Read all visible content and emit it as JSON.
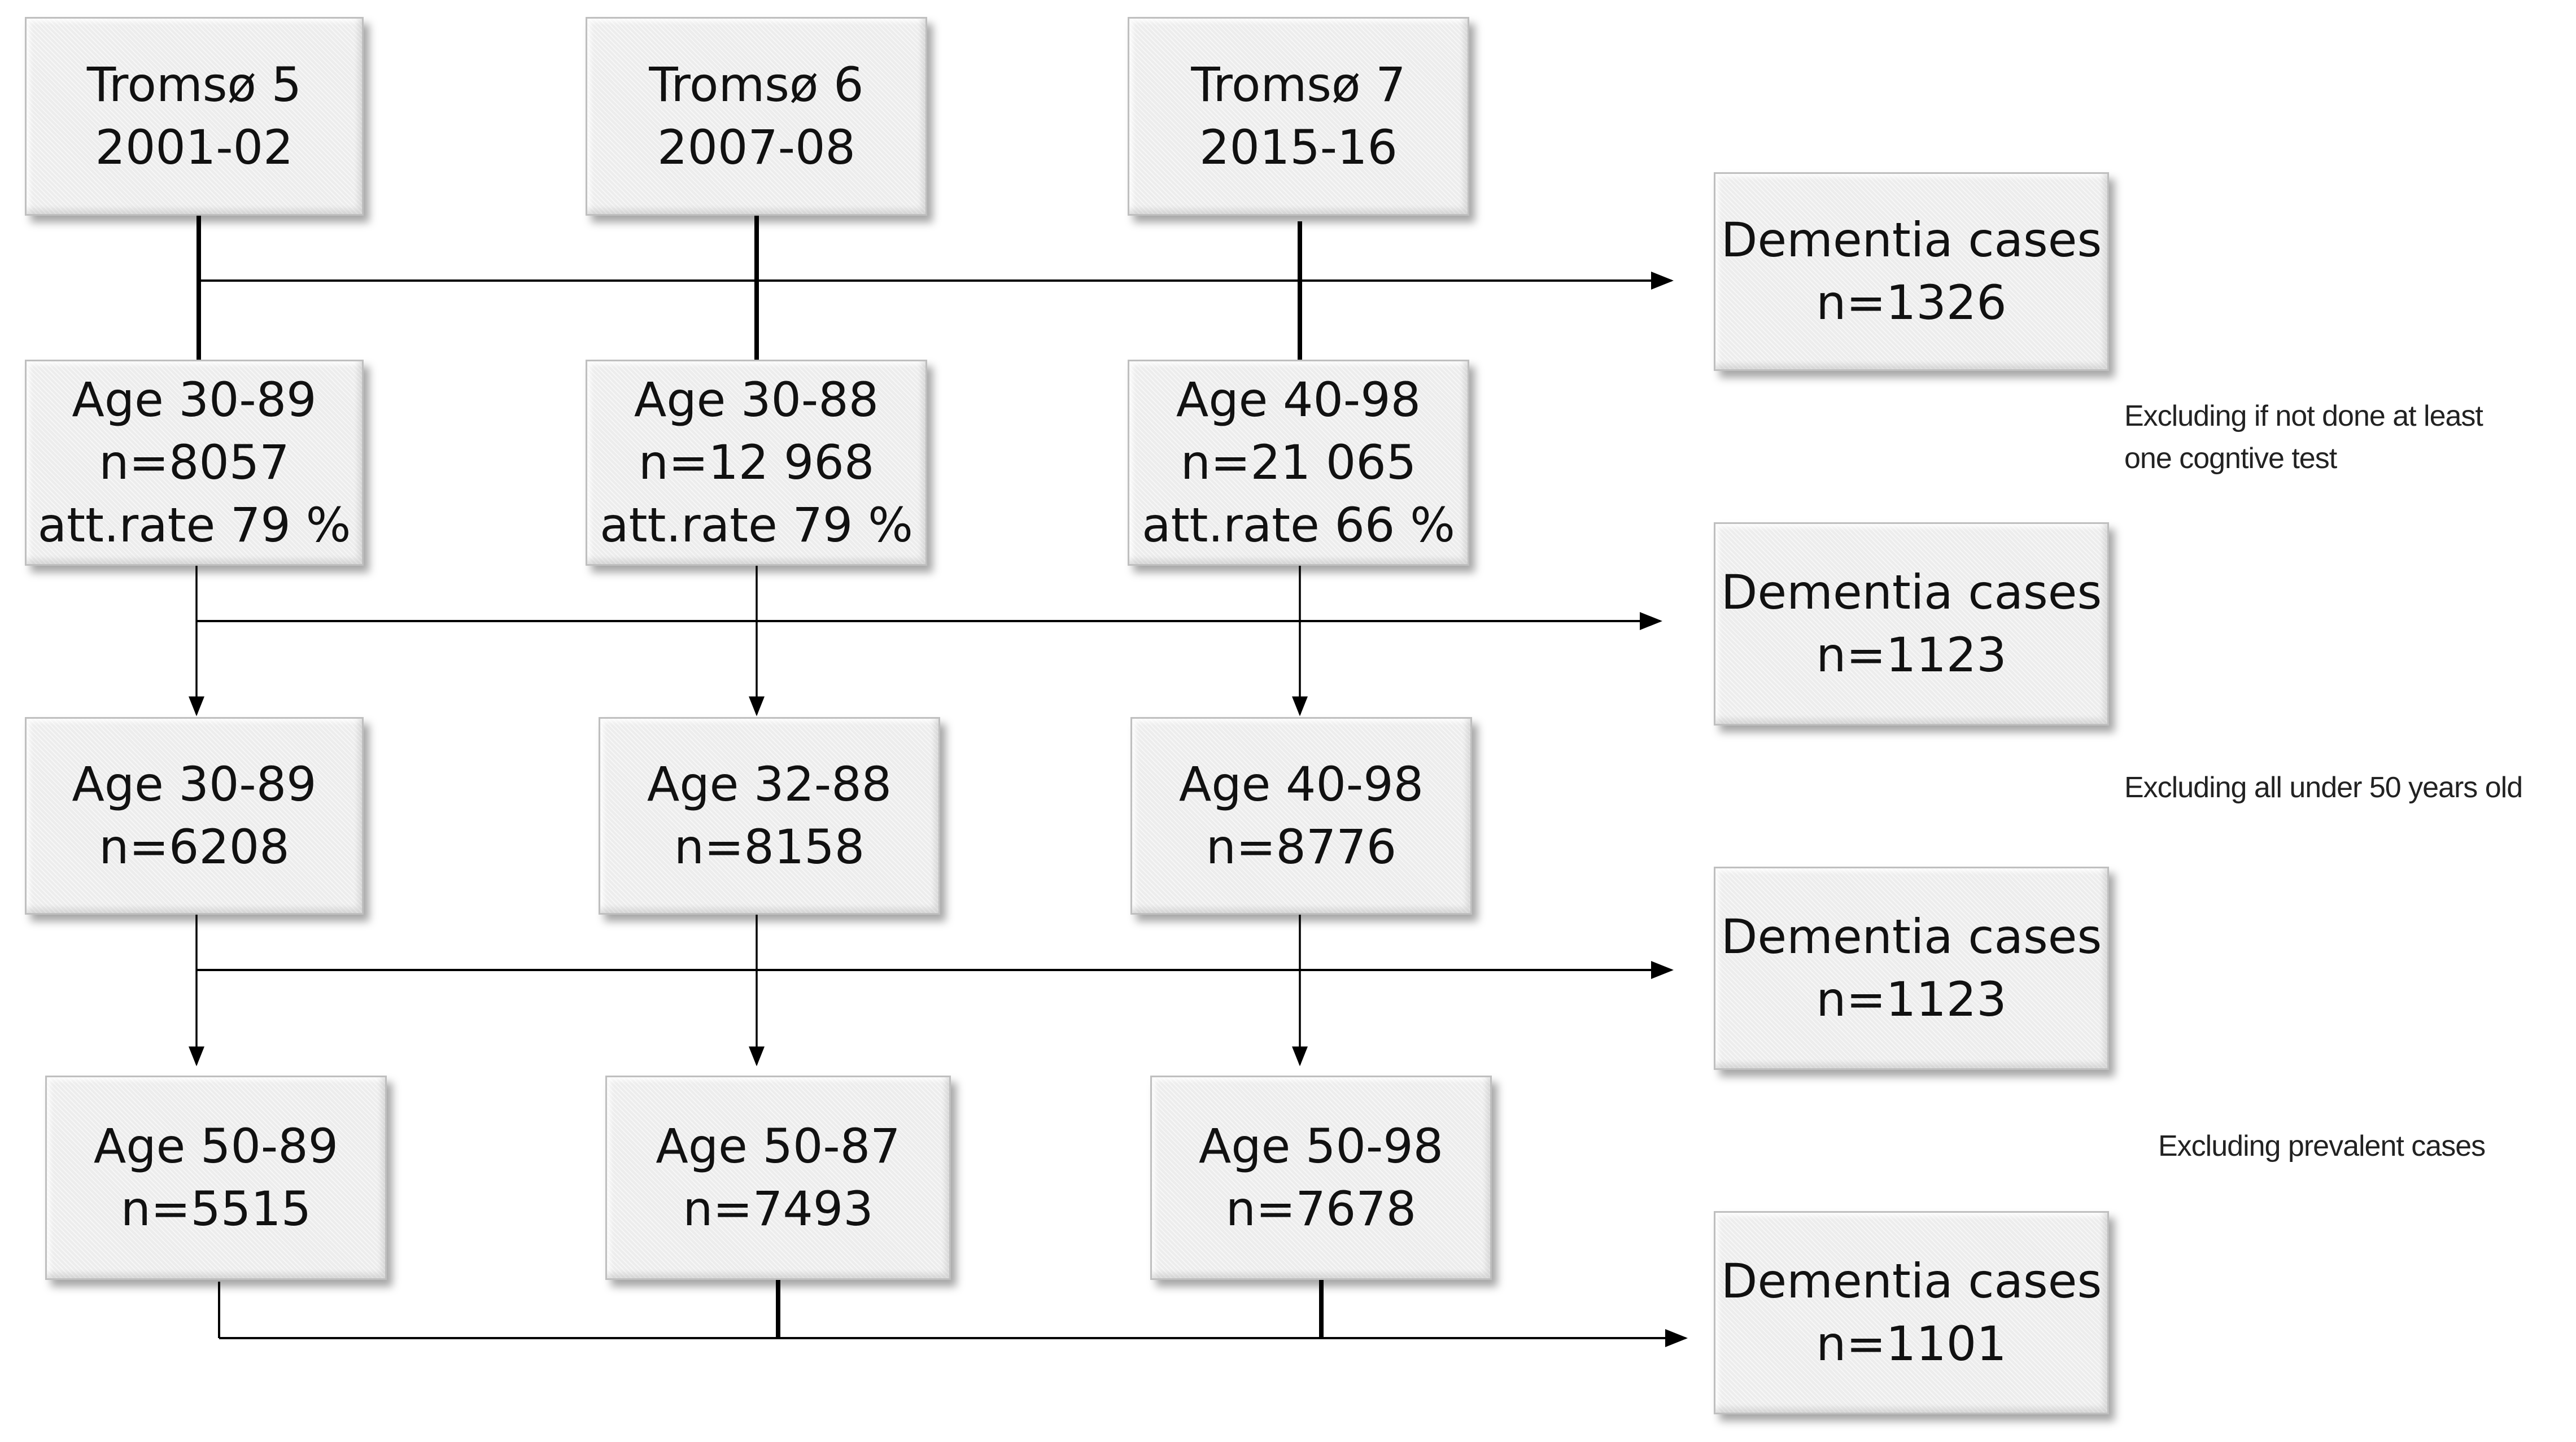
{
  "surveys": [
    {
      "name": "Tromsø 5",
      "years": "2001-02"
    },
    {
      "name": "Tromsø 6",
      "years": "2007-08"
    },
    {
      "name": "Tromsø 7",
      "years": "2015-16"
    }
  ],
  "stage1": [
    {
      "age": "Age 30-89",
      "n": "n=8057",
      "att": "att.rate 79 %"
    },
    {
      "age": "Age 30-88",
      "n": "n=12 968",
      "att": "att.rate 79 %"
    },
    {
      "age": "Age 40-98",
      "n": "n=21 065",
      "att": "att.rate 66 %"
    }
  ],
  "stage2": [
    {
      "age": "Age 30-89",
      "n": "n=6208"
    },
    {
      "age": "Age 32-88",
      "n": "n=8158"
    },
    {
      "age": "Age 40-98",
      "n": "n=8776"
    }
  ],
  "stage3": [
    {
      "age": "Age 50-89",
      "n": "n=5515"
    },
    {
      "age": "Age 50-87",
      "n": "n=7493"
    },
    {
      "age": "Age 50-98",
      "n": "n=7678"
    }
  ],
  "dementia": [
    {
      "label": "Dementia cases",
      "n": "n=1326"
    },
    {
      "label": "Dementia cases",
      "n": "n=1123"
    },
    {
      "label": "Dementia cases",
      "n": "n=1123"
    },
    {
      "label": "Dementia cases",
      "n": "n=1101"
    }
  ],
  "notes": {
    "exclusion1_line1": "Excluding if not done at least",
    "exclusion1_line2": "one cogntive test",
    "exclusion2": "Excluding all under 50 years old",
    "exclusion3": "Excluding prevalent cases"
  }
}
